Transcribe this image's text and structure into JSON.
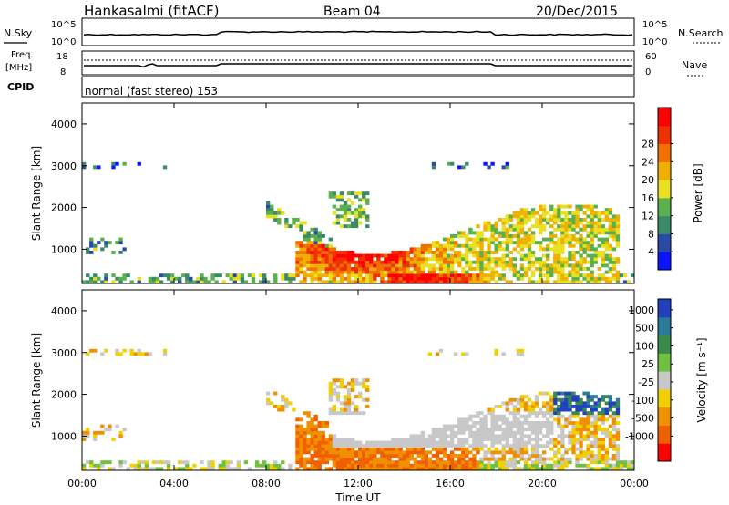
{
  "header": {
    "station": "Hankasalmi (fitACF)",
    "beam": "Beam 04",
    "date": "20/Dec/2015"
  },
  "panels": {
    "nsky": {
      "left_label": "N.Sky",
      "right_label": "N.Search",
      "tick_top": "10^5",
      "tick_bottom": "10^0",
      "tick_top_right": "10^5",
      "tick_bottom_right": "10^0"
    },
    "freq": {
      "left_label_1": "Freq.",
      "left_label_2": "[MHz]",
      "right_label": "Nave",
      "tick_left_top": "18",
      "tick_left_bottom": "8",
      "tick_right_top": "60",
      "tick_right_bottom": "0"
    },
    "cpid": {
      "label": "CPID",
      "text": "normal (fast stereo) 153"
    }
  },
  "colors": {
    "power_scale": [
      "#0a14ff",
      "#2a4aa8",
      "#3a8a6a",
      "#5ab04a",
      "#e8e020",
      "#f0b000",
      "#f07000",
      "#f03000",
      "#ff0000"
    ],
    "velocity_scale": [
      "#2040c0",
      "#2a7a9a",
      "#3a8a4a",
      "#70c040",
      "#c8c8c8",
      "#f0d000",
      "#f09000",
      "#f06000",
      "#ff0000"
    ]
  },
  "chart_data": [
    {
      "type": "heatmap",
      "name": "power",
      "ylabel": "Slant Range [km]",
      "yticks": [
        "1000",
        "2000",
        "3000",
        "4000"
      ],
      "ylim": [
        180,
        4500
      ],
      "xticks": [
        "00:00",
        "04:00",
        "08:00",
        "12:00",
        "16:00",
        "20:00",
        "00:00"
      ],
      "colorbar_label": "Power [dB]",
      "colorbar_ticks": [
        "4",
        "8",
        "12",
        "16",
        "20",
        "24",
        "28"
      ]
    },
    {
      "type": "heatmap",
      "name": "velocity",
      "ylabel": "Slant Range [km]",
      "yticks": [
        "1000",
        "2000",
        "3000",
        "4000"
      ],
      "ylim": [
        180,
        4500
      ],
      "xticks": [
        "00:00",
        "04:00",
        "08:00",
        "12:00",
        "16:00",
        "20:00",
        "00:00"
      ],
      "xlabel": "Time UT",
      "colorbar_label": "Velocity [m s⁻¹]",
      "colorbar_ticks": [
        "1000",
        "500",
        "100",
        "25",
        "-25",
        "-100",
        "-500",
        "-1000"
      ]
    }
  ]
}
